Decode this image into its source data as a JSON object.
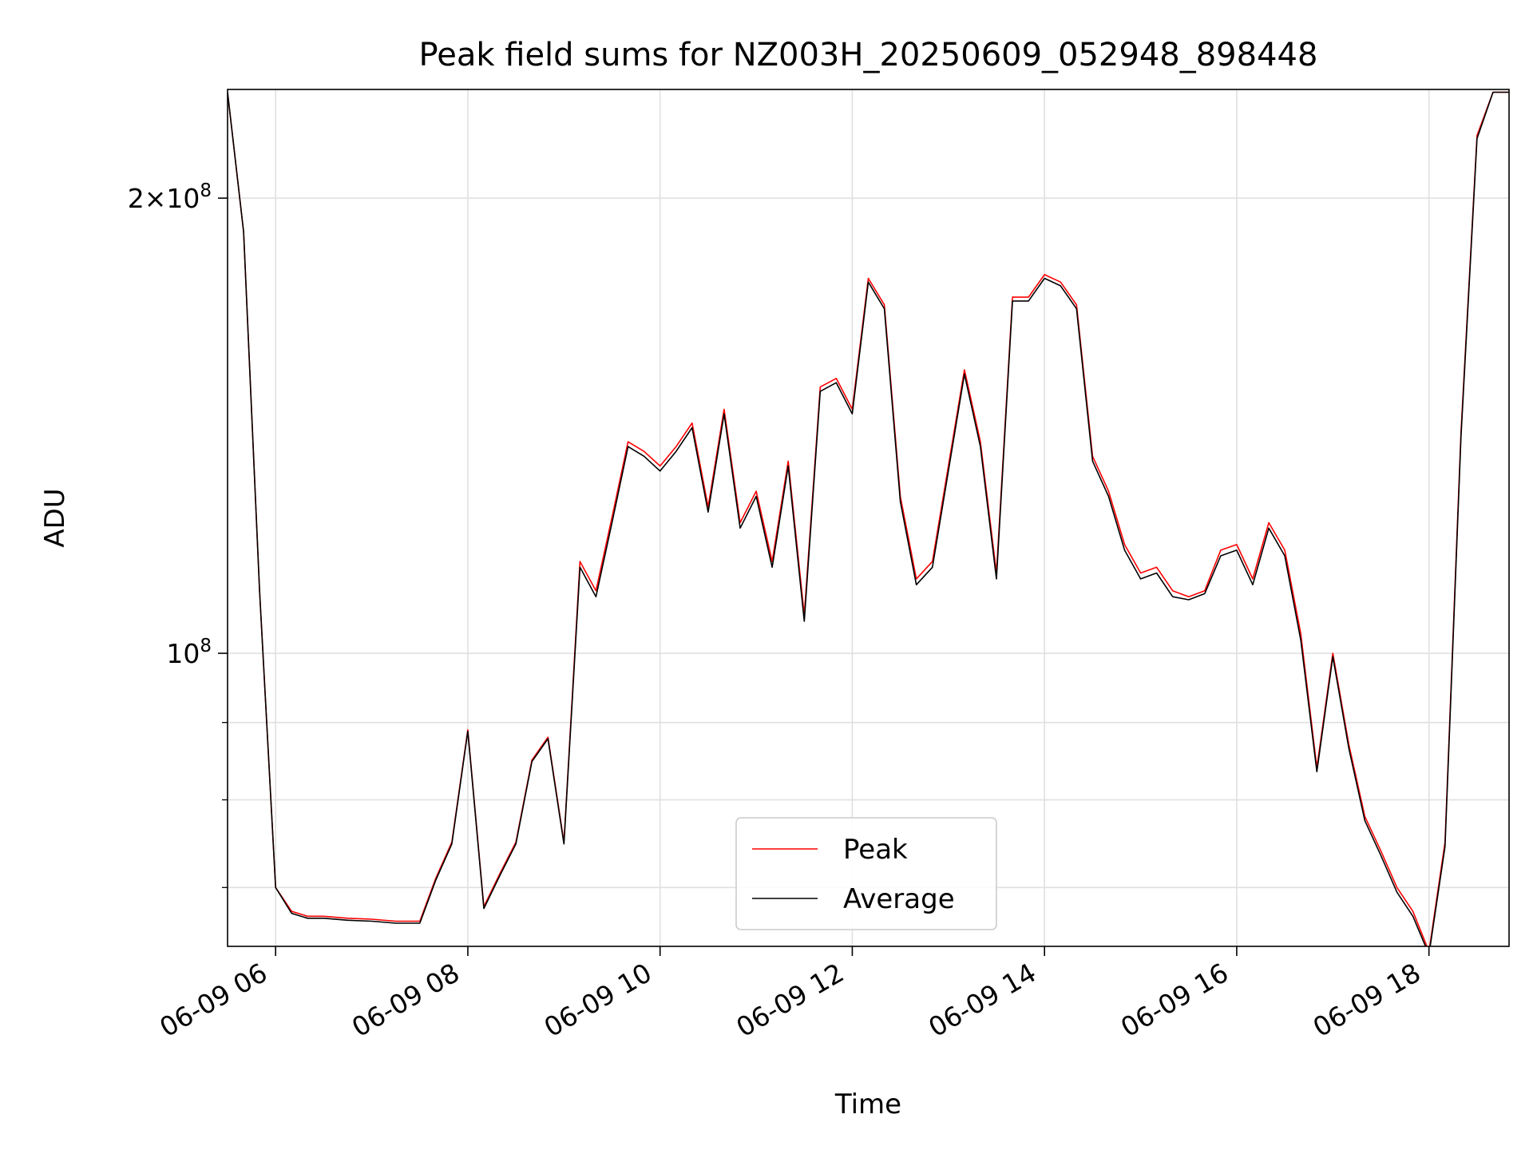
{
  "chart_data": {
    "type": "line",
    "title": "Peak field sums for NZ003H_20250609_052948_898448",
    "xlabel": "Time",
    "ylabel": "ADU",
    "yscale": "log",
    "xlim": [
      "2025-06-09 05:30",
      "2025-06-09 18:50"
    ],
    "ylim": [
      64000000,
      236000000
    ],
    "grid": true,
    "legend_position": "lower center",
    "x_ticks": [
      {
        "value": "2025-06-09 06:00",
        "label": "06-09 06"
      },
      {
        "value": "2025-06-09 08:00",
        "label": "06-09 08"
      },
      {
        "value": "2025-06-09 10:00",
        "label": "06-09 10"
      },
      {
        "value": "2025-06-09 12:00",
        "label": "06-09 12"
      },
      {
        "value": "2025-06-09 14:00",
        "label": "06-09 14"
      },
      {
        "value": "2025-06-09 16:00",
        "label": "06-09 16"
      },
      {
        "value": "2025-06-09 18:00",
        "label": "06-09 18"
      }
    ],
    "y_major_ticks": [
      {
        "value": 100000000,
        "base": "10",
        "exp": "8",
        "mantissa": ""
      },
      {
        "value": 200000000,
        "base": "10",
        "exp": "8",
        "mantissa": "2×"
      }
    ],
    "y_minor_ticks": [
      70000000,
      80000000,
      90000000
    ],
    "series": [
      {
        "name": "Peak",
        "color": "#ff0000",
        "x": [
          "2025-06-09 05:30",
          "2025-06-09 05:40",
          "2025-06-09 05:50",
          "2025-06-09 06:00",
          "2025-06-09 06:10",
          "2025-06-09 06:20",
          "2025-06-09 06:30",
          "2025-06-09 06:45",
          "2025-06-09 07:00",
          "2025-06-09 07:15",
          "2025-06-09 07:30",
          "2025-06-09 07:40",
          "2025-06-09 07:50",
          "2025-06-09 08:00",
          "2025-06-09 08:10",
          "2025-06-09 08:20",
          "2025-06-09 08:30",
          "2025-06-09 08:40",
          "2025-06-09 08:50",
          "2025-06-09 09:00",
          "2025-06-09 09:10",
          "2025-06-09 09:20",
          "2025-06-09 09:30",
          "2025-06-09 09:40",
          "2025-06-09 09:50",
          "2025-06-09 10:00",
          "2025-06-09 10:10",
          "2025-06-09 10:20",
          "2025-06-09 10:30",
          "2025-06-09 10:40",
          "2025-06-09 10:50",
          "2025-06-09 11:00",
          "2025-06-09 11:10",
          "2025-06-09 11:20",
          "2025-06-09 11:30",
          "2025-06-09 11:40",
          "2025-06-09 11:50",
          "2025-06-09 12:00",
          "2025-06-09 12:10",
          "2025-06-09 12:20",
          "2025-06-09 12:30",
          "2025-06-09 12:40",
          "2025-06-09 12:50",
          "2025-06-09 13:00",
          "2025-06-09 13:10",
          "2025-06-09 13:20",
          "2025-06-09 13:30",
          "2025-06-09 13:40",
          "2025-06-09 13:50",
          "2025-06-09 14:00",
          "2025-06-09 14:10",
          "2025-06-09 14:20",
          "2025-06-09 14:30",
          "2025-06-09 14:40",
          "2025-06-09 14:50",
          "2025-06-09 15:00",
          "2025-06-09 15:10",
          "2025-06-09 15:20",
          "2025-06-09 15:30",
          "2025-06-09 15:40",
          "2025-06-09 15:50",
          "2025-06-09 16:00",
          "2025-06-09 16:10",
          "2025-06-09 16:20",
          "2025-06-09 16:30",
          "2025-06-09 16:40",
          "2025-06-09 16:50",
          "2025-06-09 17:00",
          "2025-06-09 17:10",
          "2025-06-09 17:20",
          "2025-06-09 17:30",
          "2025-06-09 17:40",
          "2025-06-09 17:50",
          "2025-06-09 18:00",
          "2025-06-09 18:10",
          "2025-06-09 18:20",
          "2025-06-09 18:30",
          "2025-06-09 18:40",
          "2025-06-09 18:50"
        ],
        "values": [
          235000000,
          190000000,
          110000000,
          70000000,
          67500000,
          67000000,
          67000000,
          66800000,
          66700000,
          66500000,
          66500000,
          71000000,
          75000000,
          89000000,
          68000000,
          71500000,
          75000000,
          85000000,
          88000000,
          75000000,
          115000000,
          110000000,
          123000000,
          138000000,
          136000000,
          133000000,
          137000000,
          142000000,
          125000000,
          145000000,
          122000000,
          128000000,
          115000000,
          134000000,
          106000000,
          150000000,
          152000000,
          145000000,
          177000000,
          170000000,
          127000000,
          112000000,
          115000000,
          133000000,
          154000000,
          138000000,
          113000000,
          172000000,
          172000000,
          178000000,
          176000000,
          170000000,
          135000000,
          128000000,
          118000000,
          113000000,
          114000000,
          110000000,
          109000000,
          110000000,
          117000000,
          118000000,
          112000000,
          122000000,
          117000000,
          103000000,
          84000000,
          100000000,
          87000000,
          78000000,
          74000000,
          70000000,
          67500000,
          63500000,
          75000000,
          140000000,
          220000000,
          235000000,
          235000000
        ]
      },
      {
        "name": "Average",
        "color": "#000000",
        "x": [
          "2025-06-09 05:30",
          "2025-06-09 05:40",
          "2025-06-09 05:50",
          "2025-06-09 06:00",
          "2025-06-09 06:10",
          "2025-06-09 06:20",
          "2025-06-09 06:30",
          "2025-06-09 06:45",
          "2025-06-09 07:00",
          "2025-06-09 07:15",
          "2025-06-09 07:30",
          "2025-06-09 07:40",
          "2025-06-09 07:50",
          "2025-06-09 08:00",
          "2025-06-09 08:10",
          "2025-06-09 08:20",
          "2025-06-09 08:30",
          "2025-06-09 08:40",
          "2025-06-09 08:50",
          "2025-06-09 09:00",
          "2025-06-09 09:10",
          "2025-06-09 09:20",
          "2025-06-09 09:30",
          "2025-06-09 09:40",
          "2025-06-09 09:50",
          "2025-06-09 10:00",
          "2025-06-09 10:10",
          "2025-06-09 10:20",
          "2025-06-09 10:30",
          "2025-06-09 10:40",
          "2025-06-09 10:50",
          "2025-06-09 11:00",
          "2025-06-09 11:10",
          "2025-06-09 11:20",
          "2025-06-09 11:30",
          "2025-06-09 11:40",
          "2025-06-09 11:50",
          "2025-06-09 12:00",
          "2025-06-09 12:10",
          "2025-06-09 12:20",
          "2025-06-09 12:30",
          "2025-06-09 12:40",
          "2025-06-09 12:50",
          "2025-06-09 13:00",
          "2025-06-09 13:10",
          "2025-06-09 13:20",
          "2025-06-09 13:30",
          "2025-06-09 13:40",
          "2025-06-09 13:50",
          "2025-06-09 14:00",
          "2025-06-09 14:10",
          "2025-06-09 14:20",
          "2025-06-09 14:30",
          "2025-06-09 14:40",
          "2025-06-09 14:50",
          "2025-06-09 15:00",
          "2025-06-09 15:10",
          "2025-06-09 15:20",
          "2025-06-09 15:30",
          "2025-06-09 15:40",
          "2025-06-09 15:50",
          "2025-06-09 16:00",
          "2025-06-09 16:10",
          "2025-06-09 16:20",
          "2025-06-09 16:30",
          "2025-06-09 16:40",
          "2025-06-09 16:50",
          "2025-06-09 17:00",
          "2025-06-09 17:10",
          "2025-06-09 17:20",
          "2025-06-09 17:30",
          "2025-06-09 17:40",
          "2025-06-09 17:50",
          "2025-06-09 18:00",
          "2025-06-09 18:10",
          "2025-06-09 18:20",
          "2025-06-09 18:30",
          "2025-06-09 18:40",
          "2025-06-09 18:50"
        ],
        "values": [
          235000000,
          190000000,
          110000000,
          70000000,
          67300000,
          66800000,
          66800000,
          66600000,
          66500000,
          66300000,
          66300000,
          70800000,
          74800000,
          88800000,
          67800000,
          71300000,
          74800000,
          84800000,
          87800000,
          74800000,
          114000000,
          109000000,
          122000000,
          137000000,
          135000000,
          132000000,
          136000000,
          141000000,
          124000000,
          144000000,
          121000000,
          127000000,
          114000000,
          133000000,
          105000000,
          149000000,
          151000000,
          144000000,
          176000000,
          169000000,
          126000000,
          111000000,
          114000000,
          132000000,
          153000000,
          137000000,
          112000000,
          171000000,
          171000000,
          177000000,
          175000000,
          169000000,
          134000000,
          127000000,
          117000000,
          112000000,
          113000000,
          109000000,
          108500000,
          109500000,
          116000000,
          117000000,
          111000000,
          121000000,
          116000000,
          102000000,
          83500000,
          99500000,
          86500000,
          77500000,
          73500000,
          69500000,
          67000000,
          63200000,
          74500000,
          139000000,
          219000000,
          235000000,
          235000000
        ]
      }
    ]
  }
}
